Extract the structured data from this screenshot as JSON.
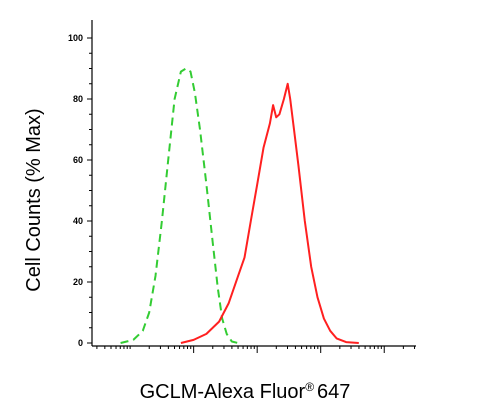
{
  "chart_data": {
    "type": "line",
    "title": "",
    "xlabel": "GCLM-Alexa Fluor",
    "xlabel_superscript": "®",
    "xlabel_suffix": "647",
    "ylabel": "Cell Counts (% Max)",
    "ylim": [
      0,
      100
    ],
    "yticks": [
      "0",
      "20",
      "40",
      "60",
      "80",
      "100"
    ],
    "x_scale": "log",
    "xlim": [
      -1.6,
      3.5
    ],
    "x_major_ticks": [
      0,
      1,
      2,
      3
    ],
    "grid": false,
    "series": [
      {
        "color": "#33cc33",
        "style": "dashed",
        "points": [
          [
            -1.15,
            0
          ],
          [
            -0.95,
            1
          ],
          [
            -0.8,
            4
          ],
          [
            -0.7,
            10
          ],
          [
            -0.6,
            22
          ],
          [
            -0.5,
            40
          ],
          [
            -0.4,
            60
          ],
          [
            -0.3,
            80
          ],
          [
            -0.2,
            89
          ],
          [
            -0.12,
            90
          ],
          [
            -0.05,
            89
          ],
          [
            0.02,
            82
          ],
          [
            0.1,
            70
          ],
          [
            0.2,
            52
          ],
          [
            0.3,
            33
          ],
          [
            0.38,
            18
          ],
          [
            0.45,
            8
          ],
          [
            0.52,
            3
          ],
          [
            0.6,
            0.5
          ],
          [
            0.7,
            0
          ]
        ]
      },
      {
        "color": "#ff2020",
        "style": "solid",
        "points": [
          [
            -0.2,
            0
          ],
          [
            0.0,
            1
          ],
          [
            0.2,
            3
          ],
          [
            0.4,
            7
          ],
          [
            0.55,
            13
          ],
          [
            0.7,
            22
          ],
          [
            0.8,
            28
          ],
          [
            0.9,
            40
          ],
          [
            1.0,
            52
          ],
          [
            1.1,
            64
          ],
          [
            1.2,
            72
          ],
          [
            1.25,
            78
          ],
          [
            1.3,
            74
          ],
          [
            1.35,
            75
          ],
          [
            1.42,
            80
          ],
          [
            1.48,
            85
          ],
          [
            1.52,
            80
          ],
          [
            1.58,
            70
          ],
          [
            1.65,
            58
          ],
          [
            1.75,
            40
          ],
          [
            1.85,
            25
          ],
          [
            1.95,
            15
          ],
          [
            2.05,
            8
          ],
          [
            2.15,
            4
          ],
          [
            2.25,
            1.5
          ],
          [
            2.4,
            0.3
          ],
          [
            2.6,
            0
          ]
        ]
      }
    ]
  }
}
